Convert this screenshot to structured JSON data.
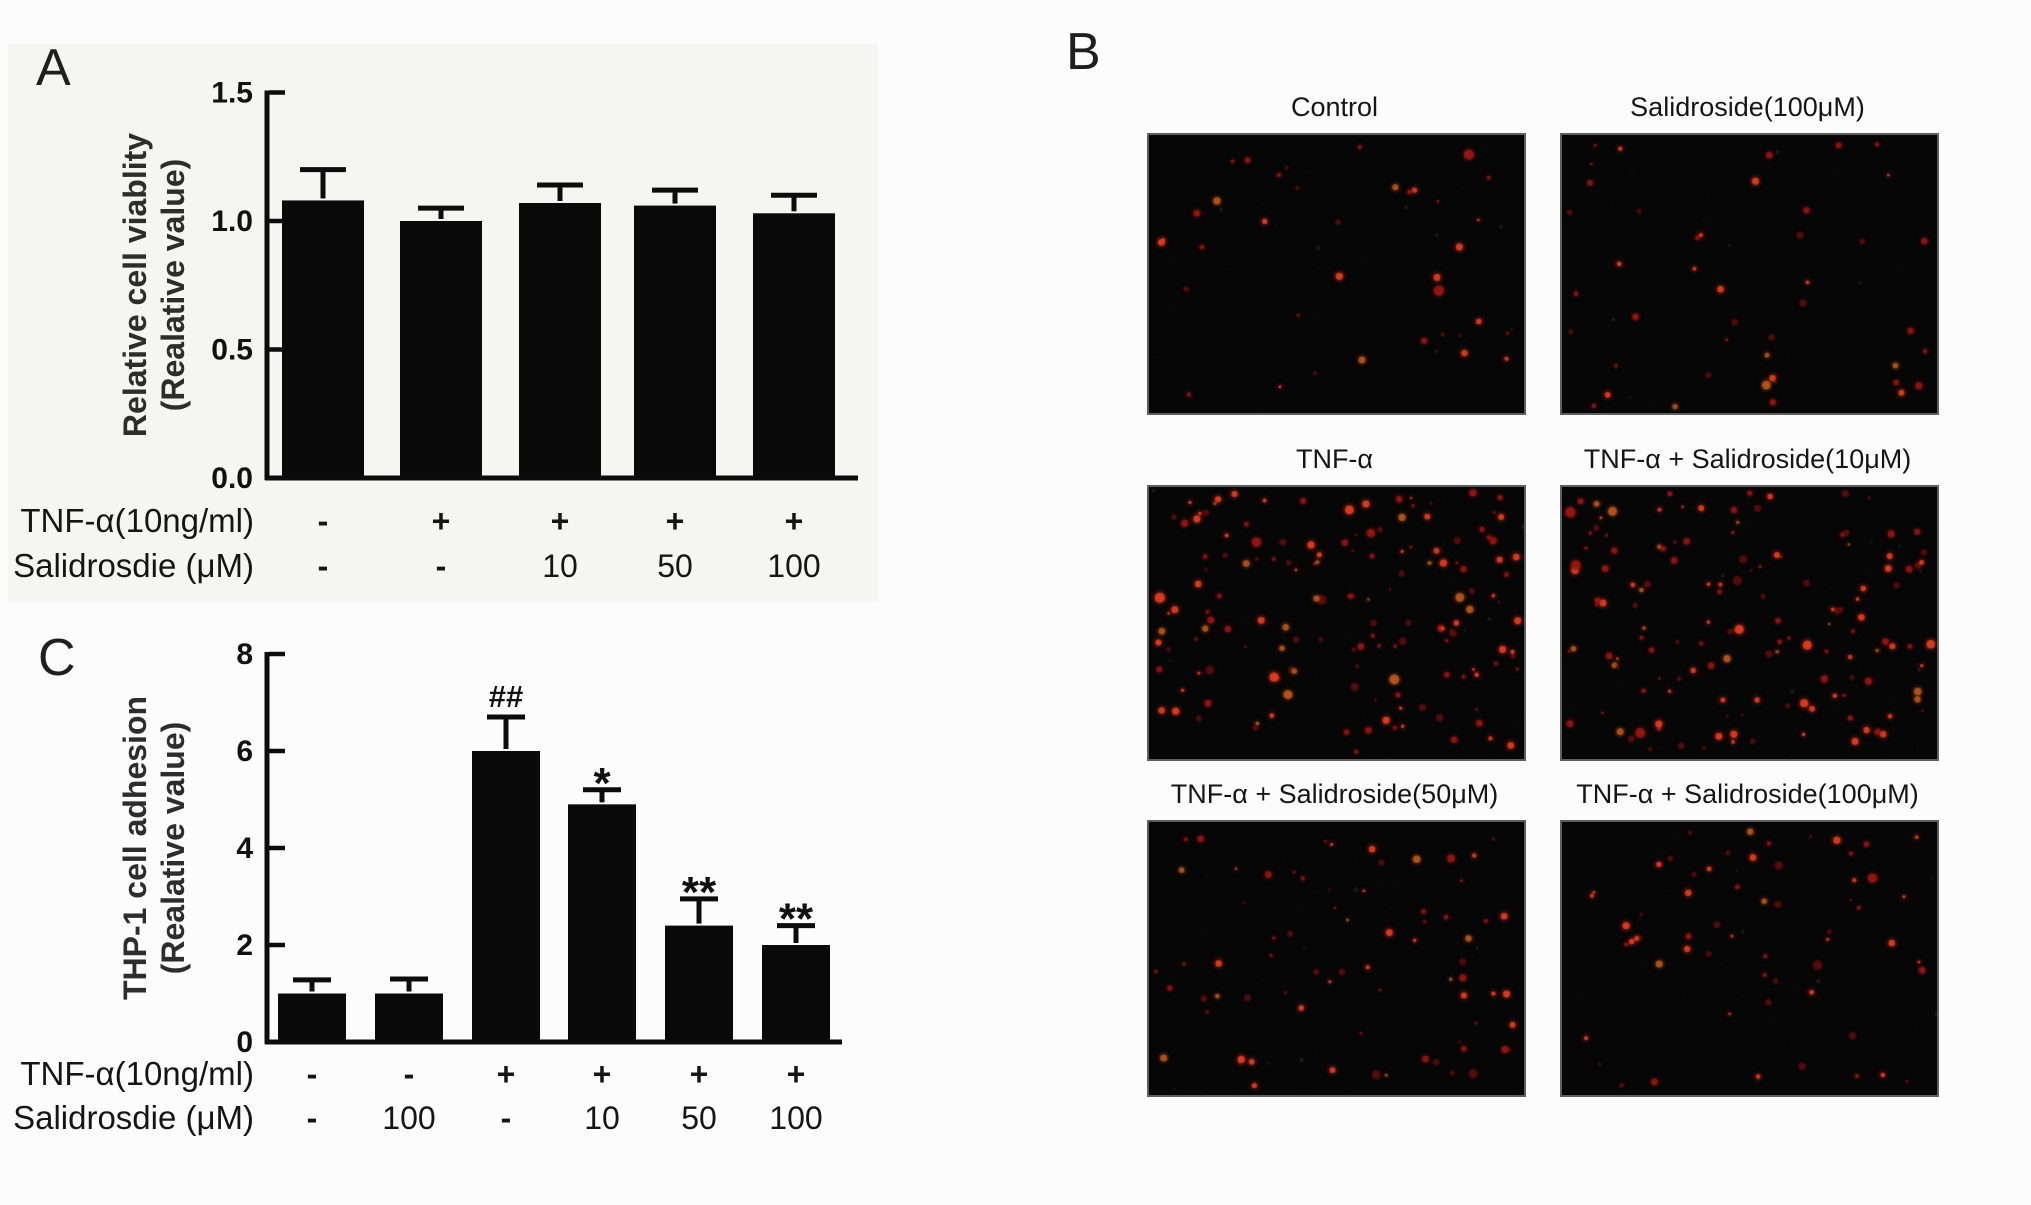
{
  "chart_data": [
    {
      "type": "bar",
      "panel": "A",
      "title": "",
      "ylabel_lines": [
        "Relative cell viablity",
        "(Realative value)"
      ],
      "ylim": [
        0,
        1.5
      ],
      "yticks": [
        {
          "v": 0,
          "label": "0.0"
        },
        {
          "v": 0.5,
          "label": "0.5"
        },
        {
          "v": 1.0,
          "label": "1.0"
        },
        {
          "v": 1.5,
          "label": "1.5"
        }
      ],
      "values": [
        1.08,
        1.0,
        1.07,
        1.06,
        1.03
      ],
      "errors": [
        0.12,
        0.05,
        0.07,
        0.06,
        0.07
      ],
      "sig": [
        "",
        "",
        "",
        "",
        ""
      ],
      "condition_rows": [
        {
          "label": "TNF-α(10ng/ml)",
          "values": [
            "-",
            "+",
            "+",
            "+",
            "+"
          ]
        },
        {
          "label": "Salidrosdie (μM)",
          "values": [
            "-",
            "-",
            "10",
            "50",
            "100"
          ]
        }
      ],
      "bar_color": "#0a0a0a",
      "grid": false,
      "legend": "none"
    },
    {
      "type": "bar",
      "panel": "C",
      "title": "",
      "ylabel_lines": [
        "THP-1 cell adhesion",
        "(Realative value)"
      ],
      "ylim": [
        0,
        8
      ],
      "yticks": [
        {
          "v": 0,
          "label": "0"
        },
        {
          "v": 2,
          "label": "2"
        },
        {
          "v": 4,
          "label": "4"
        },
        {
          "v": 6,
          "label": "6"
        },
        {
          "v": 8,
          "label": "8"
        }
      ],
      "values": [
        1.0,
        1.0,
        6.0,
        4.9,
        2.4,
        2.0
      ],
      "errors": [
        0.28,
        0.3,
        0.7,
        0.3,
        0.55,
        0.4
      ],
      "sig": [
        "",
        "",
        "##",
        "*",
        "**",
        "**"
      ],
      "condition_rows": [
        {
          "label": "TNF-α(10ng/ml)",
          "values": [
            "-",
            "-",
            "+",
            "+",
            "+",
            "+"
          ]
        },
        {
          "label": "Salidrosdie (μM)",
          "values": [
            "-",
            "100",
            "-",
            "10",
            "50",
            "100"
          ]
        }
      ],
      "bar_color": "#0a0a0a",
      "grid": false,
      "legend": "none"
    }
  ],
  "micrographs": {
    "panel_letter": "B",
    "stain_color": "#d32b1e",
    "background": "#060606",
    "items": [
      {
        "label": "Control",
        "dot_count": 38,
        "density": "low"
      },
      {
        "label": "Salidroside(100μM)",
        "dot_count": 44,
        "density": "low"
      },
      {
        "label": "TNF-α",
        "dot_count": 150,
        "density": "high"
      },
      {
        "label": "TNF-α + Salidroside(10μM)",
        "dot_count": 140,
        "density": "high"
      },
      {
        "label": "TNF-α + Salidroside(50μM)",
        "dot_count": 72,
        "density": "medium"
      },
      {
        "label": "TNF-α + Salidroside(100μM)",
        "dot_count": 60,
        "density": "medium"
      }
    ]
  }
}
